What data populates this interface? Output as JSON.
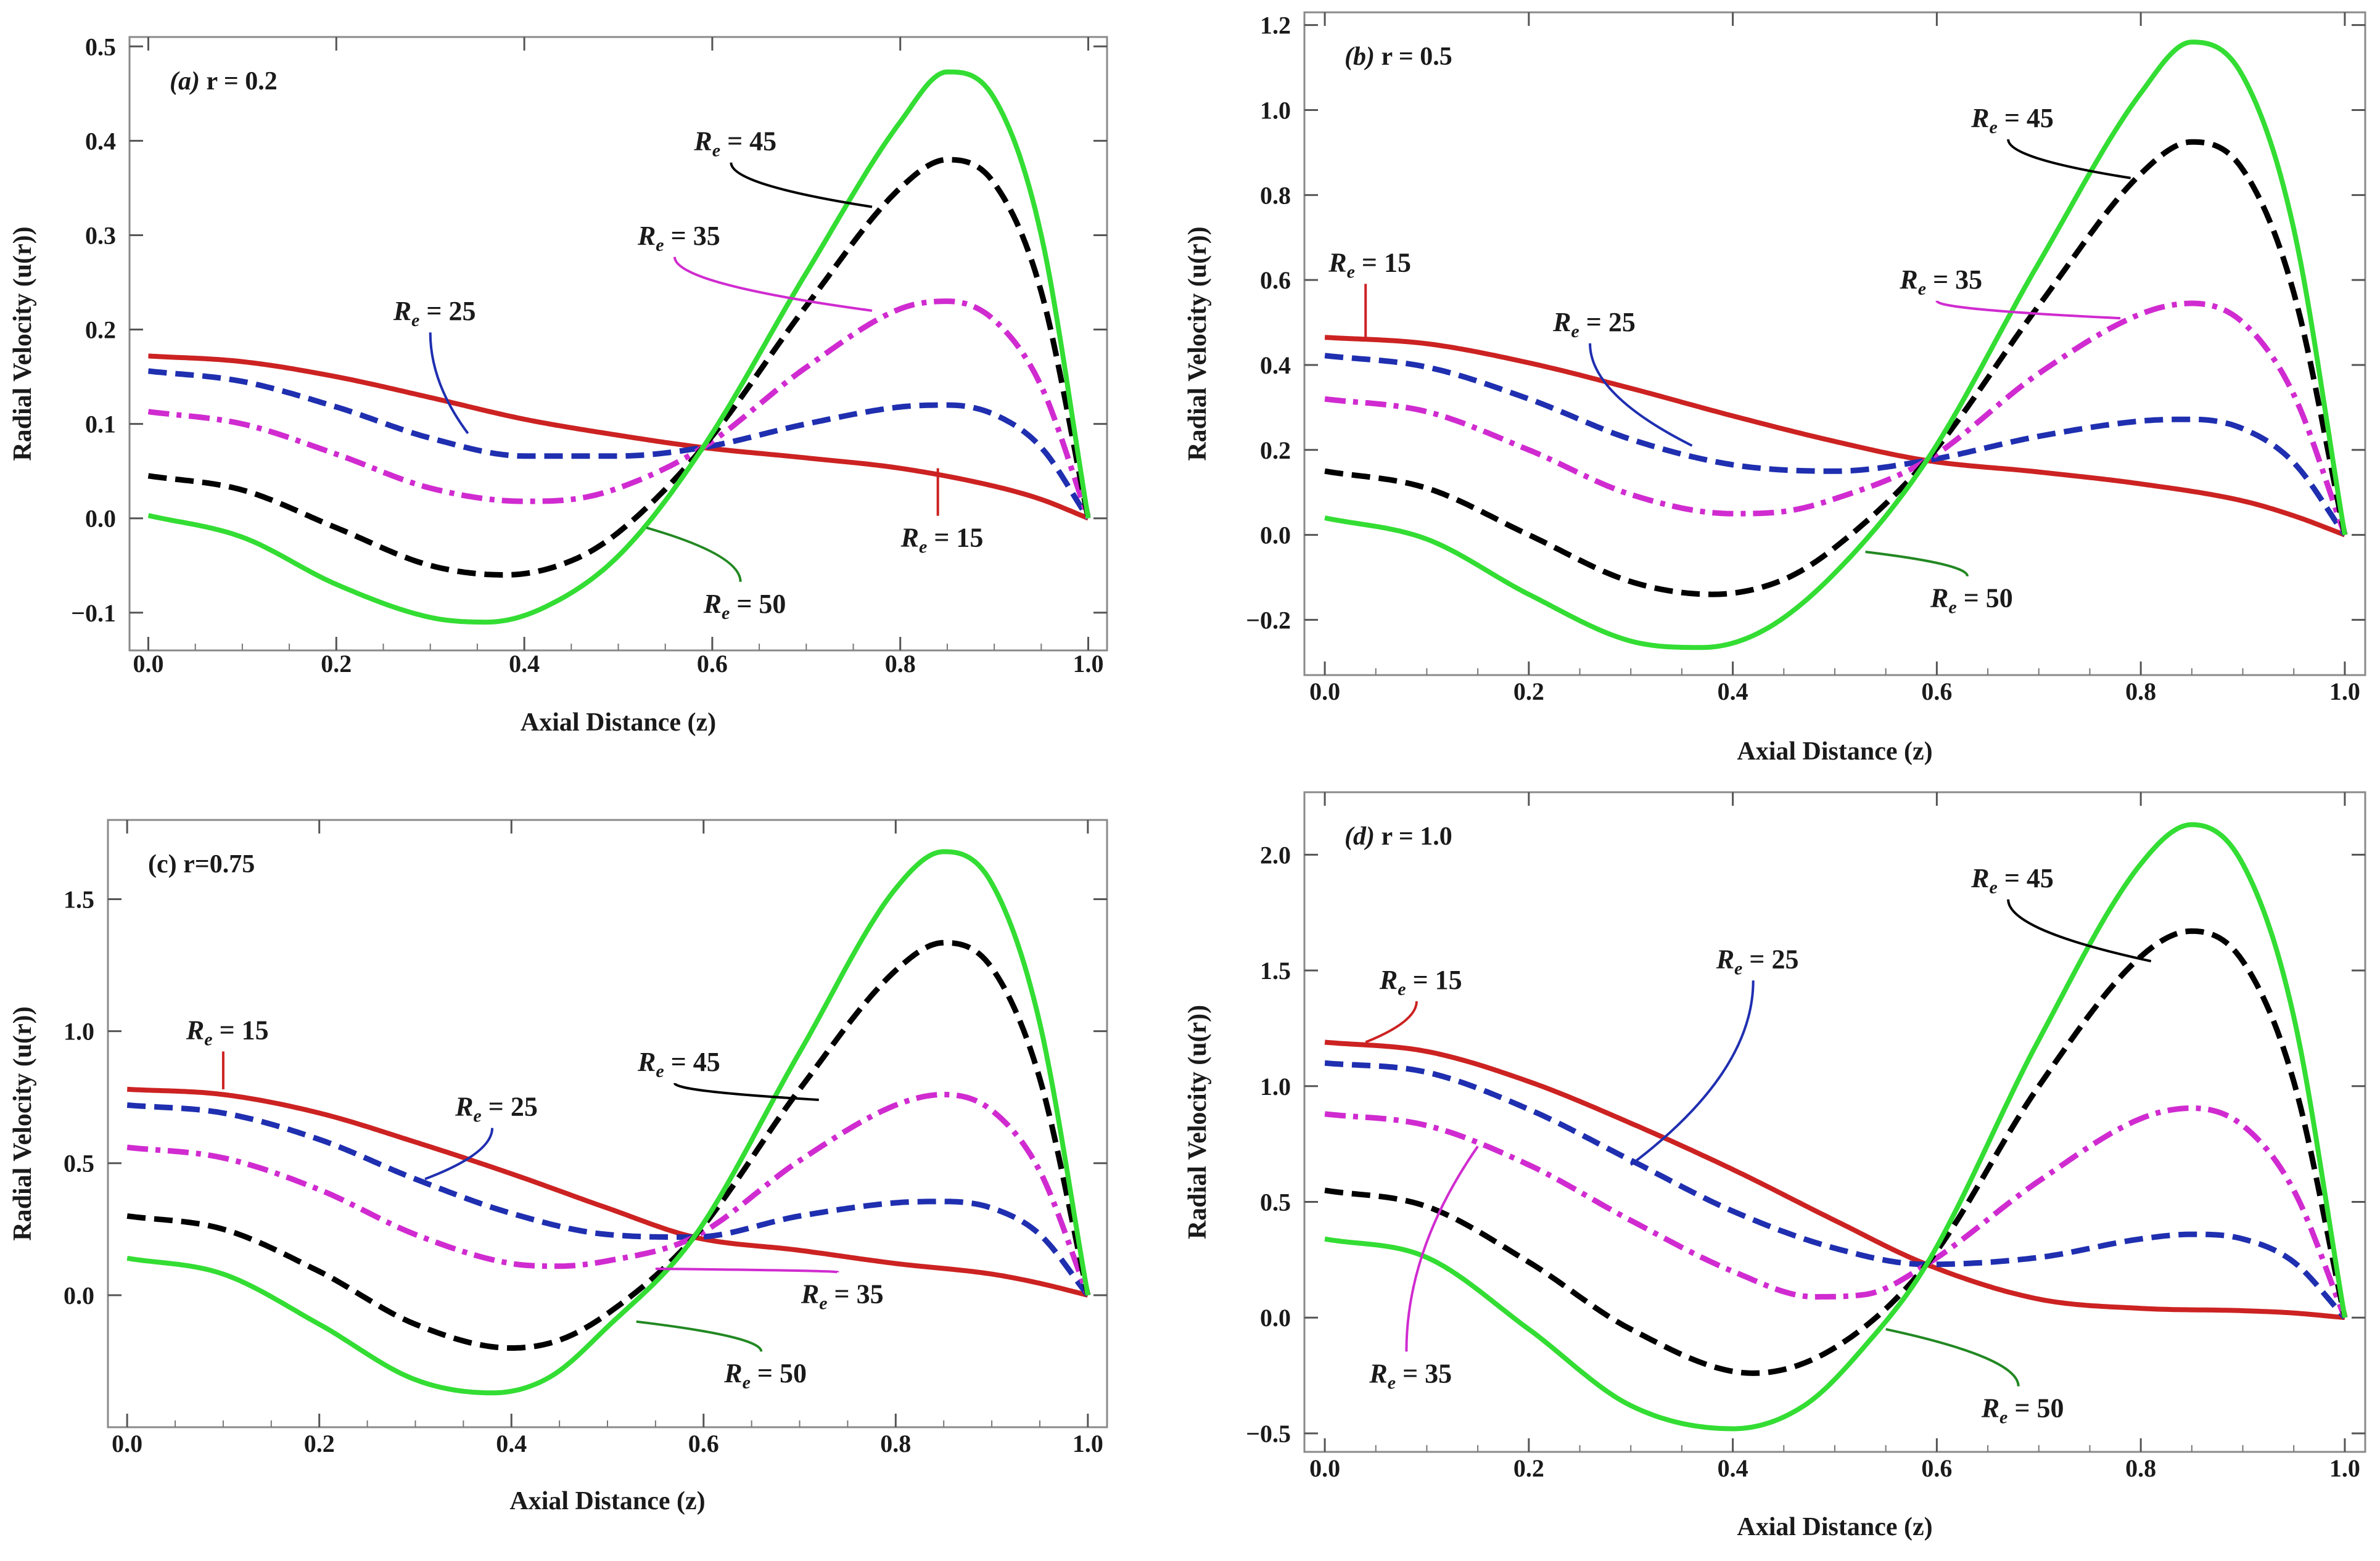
{
  "chart_data": [
    {
      "type": "line",
      "title": "(a) r = 0.2",
      "title_italic": "(a)",
      "title_rest": "r = 0.2",
      "xlabel": "Axial Distance (z)",
      "ylabel": "Radial Velocity (u(r))",
      "xlim": [
        -0.02,
        1.02
      ],
      "ylim": [
        -0.14,
        0.51
      ],
      "xticks": [
        "0.0",
        "0.2",
        "0.4",
        "0.6",
        "0.8",
        "1.0"
      ],
      "yticks": [
        "−0.1",
        "0.0",
        "0.1",
        "0.2",
        "0.3",
        "0.4",
        "0.5"
      ],
      "yticks_values": [
        -0.1,
        0.0,
        0.1,
        0.2,
        0.3,
        0.4,
        0.5
      ],
      "grid": false,
      "series": [
        {
          "name": "Re = 15",
          "color": "#cc2222",
          "dash": "solid",
          "x": [
            0,
            0.1,
            0.2,
            0.3,
            0.4,
            0.5,
            0.59,
            0.7,
            0.8,
            0.9,
            0.95,
            1.0
          ],
          "values": [
            0.172,
            0.166,
            0.15,
            0.128,
            0.105,
            0.088,
            0.075,
            0.064,
            0.053,
            0.034,
            0.02,
            0.0
          ]
        },
        {
          "name": "Re = 25",
          "color": "#1f2fb0",
          "dash": "dashed",
          "x": [
            0,
            0.1,
            0.2,
            0.3,
            0.4,
            0.5,
            0.59,
            0.7,
            0.8,
            0.85,
            0.9,
            0.95,
            1.0
          ],
          "values": [
            0.156,
            0.145,
            0.118,
            0.085,
            0.066,
            0.066,
            0.075,
            0.1,
            0.118,
            0.12,
            0.11,
            0.075,
            0.0
          ]
        },
        {
          "name": "Re = 35",
          "color": "#d02bd0",
          "dash": "dashdot",
          "x": [
            0,
            0.1,
            0.2,
            0.3,
            0.4,
            0.45,
            0.5,
            0.59,
            0.7,
            0.8,
            0.85,
            0.9,
            0.95,
            1.0
          ],
          "values": [
            0.113,
            0.1,
            0.068,
            0.032,
            0.018,
            0.02,
            0.032,
            0.075,
            0.16,
            0.222,
            0.23,
            0.21,
            0.14,
            0.0
          ]
        },
        {
          "name": "Re = 45",
          "color": "#000000",
          "dash": "dashed",
          "x": [
            0,
            0.1,
            0.2,
            0.3,
            0.38,
            0.45,
            0.5,
            0.59,
            0.7,
            0.8,
            0.85,
            0.9,
            0.95,
            1.0
          ],
          "values": [
            0.045,
            0.03,
            -0.01,
            -0.05,
            -0.06,
            -0.045,
            -0.015,
            0.075,
            0.225,
            0.35,
            0.38,
            0.355,
            0.24,
            0.0
          ]
        },
        {
          "name": "Re = 50",
          "color": "#33dd33",
          "dash": "solid",
          "x": [
            0,
            0.1,
            0.2,
            0.3,
            0.36,
            0.42,
            0.5,
            0.59,
            0.7,
            0.8,
            0.85,
            0.9,
            0.95,
            1.0
          ],
          "values": [
            0.003,
            -0.02,
            -0.07,
            -0.105,
            -0.11,
            -0.095,
            -0.04,
            0.075,
            0.26,
            0.42,
            0.473,
            0.445,
            0.3,
            0.0
          ]
        }
      ],
      "annotations": [
        {
          "text": "R",
          "sub": "e",
          "rest": " = 45",
          "x": 0.62,
          "y": 0.39,
          "ax": 0.77,
          "ay": 0.33,
          "color": "#000000"
        },
        {
          "text": "R",
          "sub": "e",
          "rest": " = 35",
          "x": 0.56,
          "y": 0.29,
          "ax": 0.77,
          "ay": 0.22,
          "color": "#d02bd0"
        },
        {
          "text": "R",
          "sub": "e",
          "rest": " = 25",
          "x": 0.3,
          "y": 0.21,
          "ax": 0.34,
          "ay": 0.09,
          "color": "#1f2fb0"
        },
        {
          "text": "R",
          "sub": "e",
          "rest": " = 15",
          "x": 0.84,
          "y": -0.03,
          "ax": 0.84,
          "ay": 0.053,
          "color": "#cc2222"
        },
        {
          "text": "R",
          "sub": "e",
          "rest": " = 50",
          "x": 0.63,
          "y": -0.1,
          "ax": 0.53,
          "ay": -0.01,
          "color": "#228822"
        }
      ]
    },
    {
      "type": "line",
      "title": "(b) r = 0.5",
      "title_italic": "(b)",
      "title_rest": "r = 0.5",
      "xlabel": "Axial Distance (z)",
      "ylabel": "Radial Velocity (u(r))",
      "xlim": [
        -0.02,
        1.02
      ],
      "ylim": [
        -0.33,
        1.23
      ],
      "xticks": [
        "0.0",
        "0.2",
        "0.4",
        "0.6",
        "0.8",
        "1.0"
      ],
      "yticks": [
        "−0.2",
        "0.0",
        "0.2",
        "0.4",
        "0.6",
        "0.8",
        "1.0",
        "1.2"
      ],
      "yticks_values": [
        -0.2,
        0.0,
        0.2,
        0.4,
        0.6,
        0.8,
        1.0,
        1.2
      ],
      "grid": false,
      "series": [
        {
          "name": "Re = 15",
          "color": "#cc2222",
          "dash": "solid",
          "x": [
            0,
            0.1,
            0.2,
            0.3,
            0.4,
            0.5,
            0.59,
            0.7,
            0.8,
            0.9,
            0.95,
            1.0
          ],
          "values": [
            0.465,
            0.45,
            0.405,
            0.345,
            0.28,
            0.22,
            0.175,
            0.148,
            0.12,
            0.08,
            0.045,
            0.0
          ]
        },
        {
          "name": "Re = 25",
          "color": "#1f2fb0",
          "dash": "dashed",
          "x": [
            0,
            0.1,
            0.2,
            0.3,
            0.4,
            0.5,
            0.59,
            0.7,
            0.8,
            0.85,
            0.9,
            0.95,
            1.0
          ],
          "values": [
            0.422,
            0.395,
            0.32,
            0.225,
            0.165,
            0.15,
            0.175,
            0.232,
            0.268,
            0.272,
            0.25,
            0.17,
            0.0
          ]
        },
        {
          "name": "Re = 35",
          "color": "#d02bd0",
          "dash": "dashdot",
          "x": [
            0,
            0.1,
            0.2,
            0.3,
            0.4,
            0.45,
            0.5,
            0.59,
            0.7,
            0.8,
            0.85,
            0.9,
            0.95,
            1.0
          ],
          "values": [
            0.32,
            0.29,
            0.2,
            0.095,
            0.05,
            0.055,
            0.085,
            0.175,
            0.38,
            0.52,
            0.545,
            0.5,
            0.33,
            0.0
          ]
        },
        {
          "name": "Re = 45",
          "color": "#000000",
          "dash": "dashed",
          "x": [
            0,
            0.1,
            0.2,
            0.3,
            0.38,
            0.45,
            0.5,
            0.59,
            0.7,
            0.8,
            0.85,
            0.9,
            0.95,
            1.0
          ],
          "values": [
            0.15,
            0.11,
            0.0,
            -0.11,
            -0.14,
            -0.105,
            -0.03,
            0.175,
            0.54,
            0.85,
            0.925,
            0.86,
            0.57,
            0.0
          ]
        },
        {
          "name": "Re = 50",
          "color": "#33dd33",
          "dash": "solid",
          "x": [
            0,
            0.1,
            0.2,
            0.3,
            0.37,
            0.43,
            0.5,
            0.59,
            0.7,
            0.8,
            0.85,
            0.9,
            0.95,
            1.0
          ],
          "values": [
            0.04,
            -0.01,
            -0.14,
            -0.25,
            -0.265,
            -0.225,
            -0.09,
            0.175,
            0.64,
            1.04,
            1.16,
            1.08,
            0.72,
            0.0
          ]
        }
      ],
      "annotations": [
        {
          "text": "R",
          "sub": "e",
          "rest": " = 45",
          "x": 0.67,
          "y": 0.96,
          "ax": 0.79,
          "ay": 0.84,
          "color": "#000000"
        },
        {
          "text": "R",
          "sub": "e",
          "rest": " = 15",
          "x": 0.04,
          "y": 0.62,
          "ax": 0.04,
          "ay": 0.46,
          "color": "#cc2222"
        },
        {
          "text": "R",
          "sub": "e",
          "rest": " = 25",
          "x": 0.26,
          "y": 0.48,
          "ax": 0.36,
          "ay": 0.21,
          "color": "#1f2fb0"
        },
        {
          "text": "R",
          "sub": "e",
          "rest": " = 35",
          "x": 0.6,
          "y": 0.58,
          "ax": 0.78,
          "ay": 0.51,
          "color": "#d02bd0"
        },
        {
          "text": "R",
          "sub": "e",
          "rest": " = 50",
          "x": 0.63,
          "y": -0.17,
          "ax": 0.53,
          "ay": -0.04,
          "color": "#228822"
        }
      ]
    },
    {
      "type": "line",
      "title": "(c) r=0.75",
      "title_italic": "",
      "title_rest": "(c) r=0.75",
      "xlabel": "Axial Distance (z)",
      "ylabel": "Radial Velocity (u(r))",
      "xlim": [
        -0.02,
        1.02
      ],
      "ylim": [
        -0.5,
        1.8
      ],
      "xticks": [
        "0.0",
        "0.2",
        "0.4",
        "0.6",
        "0.8",
        "1.0"
      ],
      "yticks": [
        "0.0",
        "0.5",
        "1.0",
        "1.5"
      ],
      "yticks_values": [
        0.0,
        0.5,
        1.0,
        1.5
      ],
      "grid": false,
      "series": [
        {
          "name": "Re = 15",
          "color": "#cc2222",
          "dash": "solid",
          "x": [
            0,
            0.1,
            0.2,
            0.3,
            0.4,
            0.5,
            0.59,
            0.7,
            0.8,
            0.9,
            0.95,
            1.0
          ],
          "values": [
            0.78,
            0.76,
            0.69,
            0.58,
            0.46,
            0.33,
            0.22,
            0.17,
            0.12,
            0.08,
            0.045,
            0.0
          ]
        },
        {
          "name": "Re = 25",
          "color": "#1f2fb0",
          "dash": "dashed",
          "x": [
            0,
            0.1,
            0.2,
            0.3,
            0.4,
            0.5,
            0.59,
            0.7,
            0.8,
            0.85,
            0.9,
            0.95,
            1.0
          ],
          "values": [
            0.72,
            0.69,
            0.59,
            0.44,
            0.31,
            0.23,
            0.22,
            0.3,
            0.35,
            0.355,
            0.33,
            0.23,
            0.0
          ]
        },
        {
          "name": "Re = 35",
          "color": "#d02bd0",
          "dash": "dashdot",
          "x": [
            0,
            0.1,
            0.2,
            0.3,
            0.4,
            0.45,
            0.5,
            0.59,
            0.7,
            0.8,
            0.85,
            0.9,
            0.95,
            1.0
          ],
          "values": [
            0.56,
            0.52,
            0.4,
            0.23,
            0.12,
            0.11,
            0.13,
            0.22,
            0.51,
            0.72,
            0.76,
            0.7,
            0.47,
            0.0
          ]
        },
        {
          "name": "Re = 45",
          "color": "#000000",
          "dash": "dashed",
          "x": [
            0,
            0.1,
            0.2,
            0.3,
            0.4,
            0.45,
            0.5,
            0.59,
            0.7,
            0.8,
            0.85,
            0.9,
            0.95,
            1.0
          ],
          "values": [
            0.3,
            0.25,
            0.09,
            -0.11,
            -0.2,
            -0.17,
            -0.07,
            0.22,
            0.78,
            1.23,
            1.335,
            1.24,
            0.82,
            0.0
          ]
        },
        {
          "name": "Re = 50",
          "color": "#33dd33",
          "dash": "solid",
          "x": [
            0,
            0.1,
            0.2,
            0.3,
            0.38,
            0.44,
            0.5,
            0.59,
            0.7,
            0.8,
            0.85,
            0.9,
            0.95,
            1.0
          ],
          "values": [
            0.14,
            0.08,
            -0.11,
            -0.32,
            -0.37,
            -0.31,
            -0.12,
            0.22,
            0.92,
            1.54,
            1.68,
            1.56,
            1.03,
            0.0
          ]
        }
      ],
      "annotations": [
        {
          "text": "R",
          "sub": "e",
          "rest": " = 15",
          "x": 0.1,
          "y": 0.97,
          "ax": 0.1,
          "ay": 0.78,
          "color": "#cc2222"
        },
        {
          "text": "R",
          "sub": "e",
          "rest": " = 25",
          "x": 0.38,
          "y": 0.68,
          "ax": 0.31,
          "ay": 0.44,
          "color": "#1f2fb0"
        },
        {
          "text": "R",
          "sub": "e",
          "rest": " = 45",
          "x": 0.57,
          "y": 0.85,
          "ax": 0.72,
          "ay": 0.74,
          "color": "#000000"
        },
        {
          "text": "R",
          "sub": "e",
          "rest": " = 35",
          "x": 0.74,
          "y": -0.03,
          "ax": 0.55,
          "ay": 0.1,
          "color": "#d02bd0"
        },
        {
          "text": "R",
          "sub": "e",
          "rest": " = 50",
          "x": 0.66,
          "y": -0.33,
          "ax": 0.53,
          "ay": -0.1,
          "color": "#228822"
        }
      ]
    },
    {
      "type": "line",
      "title": "(d) r = 1.0",
      "title_italic": "(d)",
      "title_rest": "r = 1.0",
      "xlabel": "Axial Distance (z)",
      "ylabel": "Radial Velocity (u(r))",
      "xlim": [
        -0.02,
        1.02
      ],
      "ylim": [
        -0.58,
        2.27
      ],
      "xticks": [
        "0.0",
        "0.2",
        "0.4",
        "0.6",
        "0.8",
        "1.0"
      ],
      "yticks": [
        "−0.5",
        "0.0",
        "0.5",
        "1.0",
        "1.5",
        "2.0"
      ],
      "yticks_values": [
        -0.5,
        0.0,
        0.5,
        1.0,
        1.5,
        2.0
      ],
      "grid": false,
      "series": [
        {
          "name": "Re = 15",
          "color": "#cc2222",
          "dash": "solid",
          "x": [
            0,
            0.1,
            0.2,
            0.3,
            0.4,
            0.5,
            0.59,
            0.7,
            0.8,
            0.9,
            0.95,
            1.0
          ],
          "values": [
            1.19,
            1.15,
            1.02,
            0.84,
            0.64,
            0.42,
            0.23,
            0.08,
            0.04,
            0.03,
            0.02,
            0.0
          ]
        },
        {
          "name": "Re = 25",
          "color": "#1f2fb0",
          "dash": "dashed",
          "x": [
            0,
            0.1,
            0.2,
            0.3,
            0.4,
            0.5,
            0.59,
            0.7,
            0.8,
            0.85,
            0.9,
            0.95,
            1.0
          ],
          "values": [
            1.1,
            1.06,
            0.9,
            0.68,
            0.46,
            0.3,
            0.23,
            0.26,
            0.34,
            0.36,
            0.34,
            0.24,
            0.0
          ]
        },
        {
          "name": "Re = 35",
          "color": "#d02bd0",
          "dash": "dashdot",
          "x": [
            0,
            0.1,
            0.2,
            0.3,
            0.4,
            0.48,
            0.53,
            0.59,
            0.7,
            0.8,
            0.85,
            0.9,
            0.95,
            1.0
          ],
          "values": [
            0.88,
            0.83,
            0.66,
            0.42,
            0.2,
            0.09,
            0.1,
            0.23,
            0.59,
            0.86,
            0.905,
            0.83,
            0.55,
            0.0
          ]
        },
        {
          "name": "Re = 45",
          "color": "#000000",
          "dash": "dashed",
          "x": [
            0,
            0.1,
            0.2,
            0.3,
            0.42,
            0.5,
            0.59,
            0.7,
            0.8,
            0.85,
            0.9,
            0.95,
            1.0
          ],
          "values": [
            0.55,
            0.48,
            0.24,
            -0.05,
            -0.24,
            -0.13,
            0.23,
            1.0,
            1.56,
            1.67,
            1.54,
            1.02,
            0.0
          ]
        },
        {
          "name": "Re = 50",
          "color": "#33dd33",
          "dash": "solid",
          "x": [
            0,
            0.1,
            0.2,
            0.3,
            0.4,
            0.47,
            0.53,
            0.59,
            0.7,
            0.8,
            0.85,
            0.9,
            0.95,
            1.0
          ],
          "values": [
            0.34,
            0.26,
            -0.05,
            -0.38,
            -0.48,
            -0.38,
            -0.12,
            0.23,
            1.2,
            1.96,
            2.13,
            1.96,
            1.3,
            0.0
          ]
        }
      ],
      "annotations": [
        {
          "text": "R",
          "sub": "e",
          "rest": " = 45",
          "x": 0.67,
          "y": 1.86,
          "ax": 0.81,
          "ay": 1.54,
          "color": "#000000"
        },
        {
          "text": "R",
          "sub": "e",
          "rest": " = 15",
          "x": 0.09,
          "y": 1.42,
          "ax": 0.04,
          "ay": 1.19,
          "color": "#cc2222"
        },
        {
          "text": "R",
          "sub": "e",
          "rest": " = 25",
          "x": 0.42,
          "y": 1.51,
          "ax": 0.3,
          "ay": 0.66,
          "color": "#1f2fb0"
        },
        {
          "text": "R",
          "sub": "e",
          "rest": " = 35",
          "x": 0.08,
          "y": -0.28,
          "ax": 0.15,
          "ay": 0.74,
          "color": "#d02bd0"
        },
        {
          "text": "R",
          "sub": "e",
          "rest": " = 50",
          "x": 0.68,
          "y": -0.43,
          "ax": 0.55,
          "ay": -0.05,
          "color": "#228822"
        }
      ]
    }
  ]
}
